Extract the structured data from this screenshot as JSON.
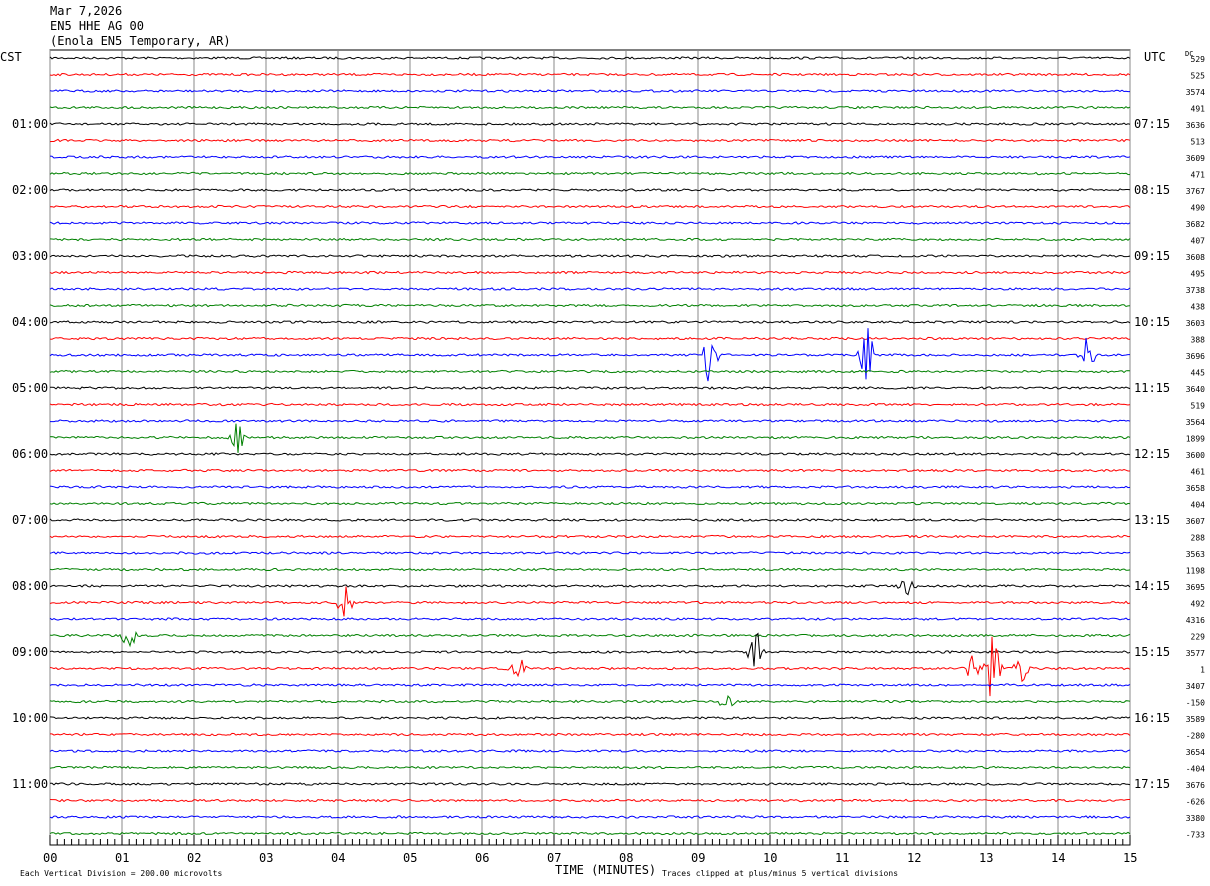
{
  "header": {
    "date": "Mar 7,2026",
    "channel": "EN5 HHE AG 00",
    "station": "(Enola EN5 Temporary, AR)"
  },
  "chart_data": {
    "type": "line",
    "title": "EN5 HHE AG 00 helicorder",
    "left_tz": "CST",
    "right_tz": "UTC",
    "dc_label": "DC",
    "xlabel": "TIME (MINUTES)",
    "x_ticks": [
      "00",
      "01",
      "02",
      "03",
      "04",
      "05",
      "06",
      "07",
      "08",
      "09",
      "10",
      "11",
      "12",
      "13",
      "14",
      "15"
    ],
    "xlim": [
      0,
      15
    ],
    "minutes_per_line": 15,
    "trace_colors": [
      "#000000",
      "#ff0000",
      "#0000ff",
      "#008000"
    ],
    "left_hour_labels": [
      "01:00",
      "02:00",
      "03:00",
      "04:00",
      "05:00",
      "06:00",
      "07:00",
      "08:00",
      "09:00",
      "10:00",
      "11:00"
    ],
    "right_hour_labels": [
      "07:15",
      "08:15",
      "09:15",
      "10:15",
      "11:15",
      "12:15",
      "13:15",
      "14:15",
      "15:15",
      "16:15",
      "17:15"
    ],
    "dc_offsets": [
      529,
      525,
      3574,
      491,
      3636,
      513,
      3609,
      471,
      3767,
      490,
      3682,
      407,
      3608,
      495,
      3738,
      438,
      3603,
      388,
      3696,
      445,
      3640,
      519,
      3564,
      1899,
      3600,
      461,
      3658,
      404,
      3607,
      288,
      3563,
      1198,
      3695,
      492,
      4316,
      229,
      3577,
      1,
      3407,
      -150,
      3589,
      -280,
      3654,
      -404,
      3676,
      -626,
      3380,
      -733
    ],
    "events": [
      {
        "trace": 18,
        "minute": 9.15,
        "amp": 2.5
      },
      {
        "trace": 18,
        "minute": 11.35,
        "amp": 1.8
      },
      {
        "trace": 18,
        "minute": 14.4,
        "amp": 1.2
      },
      {
        "trace": 23,
        "minute": 2.6,
        "amp": 1.2
      },
      {
        "trace": 32,
        "minute": 11.9,
        "amp": 0.6
      },
      {
        "trace": 33,
        "minute": 4.1,
        "amp": 1.5
      },
      {
        "trace": 35,
        "minute": 1.1,
        "amp": 1.0
      },
      {
        "trace": 36,
        "minute": 9.8,
        "amp": 1.6
      },
      {
        "trace": 37,
        "minute": 6.5,
        "amp": 0.8
      },
      {
        "trace": 37,
        "minute": 12.8,
        "amp": 1.0
      },
      {
        "trace": 37,
        "minute": 13.1,
        "amp": 2.6
      },
      {
        "trace": 37,
        "minute": 13.5,
        "amp": 1.0
      },
      {
        "trace": 39,
        "minute": 9.4,
        "amp": 0.5
      }
    ],
    "vertical_division": "Each Vertical Division =  200.00 microvolts",
    "clip_note": "Traces clipped at plus/minus 5 vertical divisions"
  }
}
